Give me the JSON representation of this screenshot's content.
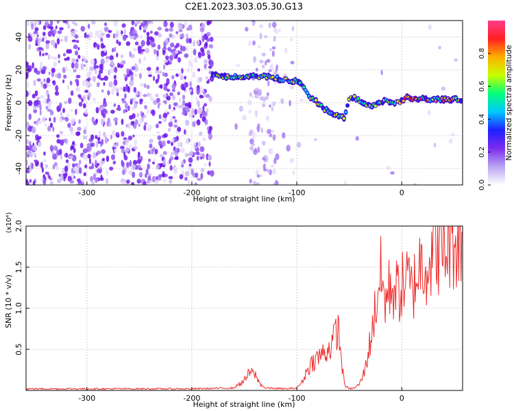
{
  "title": "C2E1.2023.303.05.30.G13",
  "chart_data": [
    {
      "type": "heatmap",
      "xlabel": "Height of straight line (km)",
      "ylabel": "Frequency (Hz)",
      "xlim": [
        -358,
        58
      ],
      "ylim": [
        -50,
        50
      ],
      "x_ticks": [
        -300,
        -200,
        -100,
        0
      ],
      "y_ticks": [
        -40,
        -20,
        0,
        20,
        40
      ],
      "colorbar": {
        "label": "Normalized spectral amplitude",
        "range": [
          0,
          1
        ],
        "ticks": [
          0.0,
          0.2,
          0.4,
          0.6,
          0.8
        ],
        "colors": [
          "#ffffff",
          "#b9a6f2",
          "#7b2cf0",
          "#1f1fff",
          "#00c8ff",
          "#00ff7a",
          "#c8ff00",
          "#ffb000",
          "#ff2020",
          "#ff3c8c"
        ]
      },
      "ridge_frequency": [
        [
          -180,
          17
        ],
        [
          -170,
          16
        ],
        [
          -160,
          16
        ],
        [
          -150,
          15
        ],
        [
          -140,
          16
        ],
        [
          -130,
          16
        ],
        [
          -120,
          15
        ],
        [
          -110,
          14
        ],
        [
          -100,
          13
        ],
        [
          -95,
          11
        ],
        [
          -90,
          6
        ],
        [
          -85,
          2
        ],
        [
          -80,
          0
        ],
        [
          -75,
          -3
        ],
        [
          -70,
          -5
        ],
        [
          -65,
          -7
        ],
        [
          -60,
          -8
        ],
        [
          -55,
          -9
        ],
        [
          -50,
          2
        ],
        [
          -45,
          3
        ],
        [
          -40,
          1
        ],
        [
          -35,
          0
        ],
        [
          -30,
          -2
        ],
        [
          -25,
          -1
        ],
        [
          -20,
          0
        ],
        [
          -15,
          1
        ],
        [
          -10,
          0
        ],
        [
          -5,
          0
        ],
        [
          0,
          1
        ],
        [
          5,
          4
        ],
        [
          10,
          2
        ],
        [
          20,
          2
        ],
        [
          30,
          2
        ],
        [
          40,
          2
        ],
        [
          50,
          2
        ],
        [
          58,
          2
        ]
      ]
    },
    {
      "type": "line",
      "xlabel": "Height of straight line (km)",
      "ylabel": "SNR (10 * v/v)",
      "y_multiplier": "(x10⁴)",
      "xlim": [
        -358,
        58
      ],
      "ylim": [
        0,
        2.0
      ],
      "x_ticks": [
        -300,
        -200,
        -100,
        0
      ],
      "y_ticks": [
        0.5,
        1.0,
        1.5,
        2.0
      ],
      "color": "#ee2a2a",
      "series": [
        {
          "x": [
            -358,
            -300,
            -250,
            -200,
            -160,
            -150,
            -145,
            -140,
            -135,
            -130,
            -110,
            -100,
            -95,
            -90,
            -85,
            -80,
            -75,
            -70,
            -65,
            -62,
            -60,
            -58,
            -56,
            -54,
            -50,
            -45,
            -40,
            -35,
            -30,
            -25,
            -22,
            -20,
            -18,
            -15,
            -10,
            -5,
            0,
            5,
            10,
            15,
            20,
            25,
            30,
            35,
            40,
            45,
            50,
            55,
            58
          ],
          "y": [
            0.02,
            0.02,
            0.02,
            0.02,
            0.03,
            0.12,
            0.22,
            0.2,
            0.08,
            0.03,
            0.02,
            0.03,
            0.1,
            0.25,
            0.35,
            0.4,
            0.45,
            0.5,
            0.6,
            0.75,
            0.7,
            0.45,
            0.2,
            0.06,
            0.02,
            0.03,
            0.08,
            0.25,
            0.6,
            1.0,
            1.3,
            1.4,
            1.2,
            1.1,
            1.3,
            1.2,
            1.25,
            1.35,
            1.2,
            1.45,
            1.6,
            1.55,
            1.7,
            1.75,
            1.7,
            1.8,
            1.85,
            1.8,
            1.85
          ]
        }
      ]
    }
  ]
}
